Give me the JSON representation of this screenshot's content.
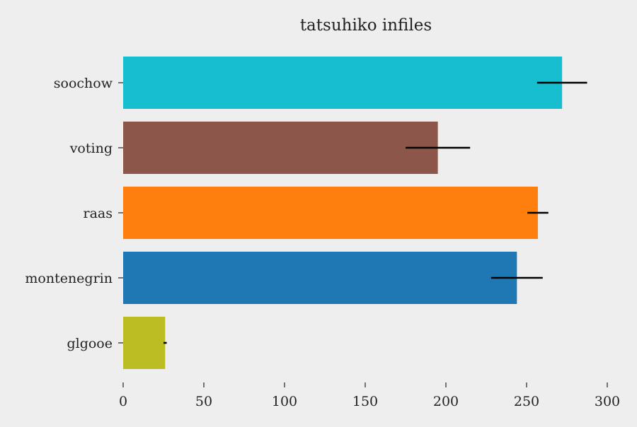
{
  "chart_data": {
    "type": "bar",
    "orientation": "horizontal",
    "title": "tatsuhiko infiles",
    "xlabel": "",
    "ylabel": "",
    "categories": [
      "soochow",
      "voting",
      "raas",
      "montenegrin",
      "glgooe"
    ],
    "values": [
      272,
      195,
      257,
      244,
      26
    ],
    "errors": [
      15.5,
      20,
      6.5,
      16,
      1
    ],
    "colors": [
      "#17becf",
      "#8c564b",
      "#ff7f0e",
      "#1f77b4",
      "#bcbd22"
    ],
    "error_color": "#000000",
    "xlim": [
      0,
      300
    ],
    "xticks": [
      0,
      50,
      100,
      150,
      200,
      250,
      300
    ],
    "xtick_labels": [
      "0",
      "50",
      "100",
      "150",
      "200",
      "250",
      "300"
    ],
    "grid": false,
    "legend": "none",
    "background": "#eeeeee"
  }
}
